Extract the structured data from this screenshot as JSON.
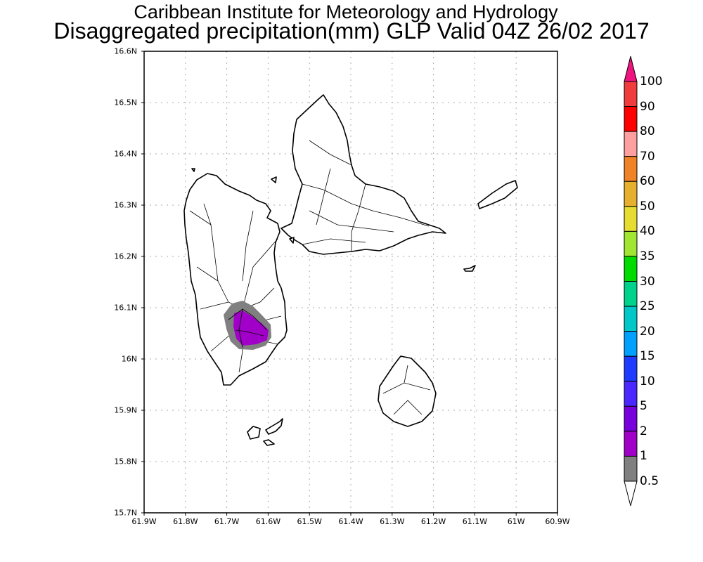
{
  "title": {
    "line1": "Caribbean Institute for Meteorology and Hydrology",
    "line2": "Disaggregated precipitation(mm) GLP Valid 04Z 26/02 2017"
  },
  "map": {
    "lat_labels": [
      "16.6N",
      "16.5N",
      "16.4N",
      "16.3N",
      "16.2N",
      "16.1N",
      "16N",
      "15.9N",
      "15.8N",
      "15.7N"
    ],
    "lat_values": [
      16.6,
      16.5,
      16.4,
      16.3,
      16.2,
      16.1,
      16.0,
      15.9,
      15.8,
      15.7
    ],
    "lon_labels": [
      "61.9W",
      "61.8W",
      "61.7W",
      "61.6W",
      "61.5W",
      "61.4W",
      "61.3W",
      "61.2W",
      "61.1W",
      "61W",
      "60.9W"
    ],
    "lon_values": [
      -61.9,
      -61.8,
      -61.7,
      -61.6,
      -61.5,
      -61.4,
      -61.3,
      -61.2,
      -61.1,
      -61.0,
      -60.9
    ],
    "lat_range": [
      15.7,
      16.6
    ],
    "lon_range": [
      -61.9,
      -60.9
    ]
  },
  "legend": {
    "labels": [
      "100",
      "90",
      "80",
      "70",
      "60",
      "50",
      "40",
      "35",
      "30",
      "25",
      "20",
      "15",
      "10",
      "5",
      "2",
      "1",
      "0.5"
    ],
    "colors": [
      "#f03c3c",
      "#ff0000",
      "#ffa0a0",
      "#f08228",
      "#e6af2d",
      "#e6dc32",
      "#a0e632",
      "#00dc00",
      "#00d28c",
      "#00c8c8",
      "#00a0ff",
      "#1e3cff",
      "#4b28ff",
      "#7800dc",
      "#a000c8",
      "#808080"
    ],
    "over_color": "#f0147f",
    "under_color": "#ffffff"
  }
}
